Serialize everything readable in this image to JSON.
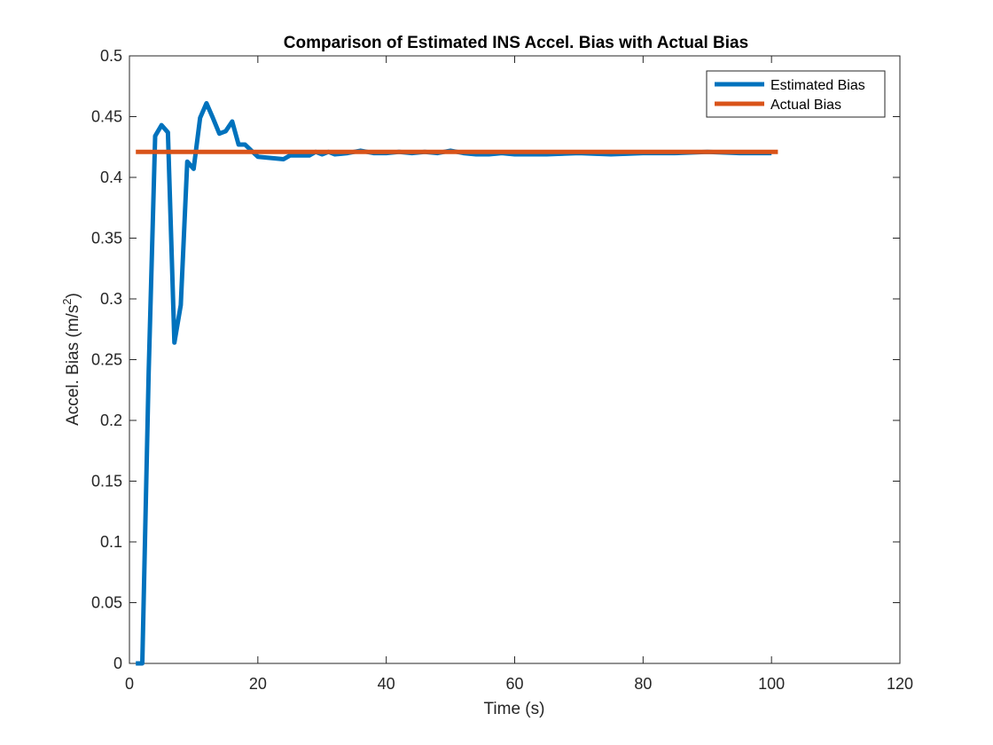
{
  "chart_data": {
    "type": "line",
    "title": "Comparison of Estimated INS Accel. Bias with Actual Bias",
    "xlabel": "Time (s)",
    "ylabel": "Accel. Bias (m/s",
    "ylabel_superscript": "2",
    "ylabel_suffix": ")",
    "xlim": [
      0,
      120
    ],
    "ylim": [
      0,
      0.5
    ],
    "xticks": [
      "0",
      "20",
      "40",
      "60",
      "80",
      "100",
      "120"
    ],
    "yticks": [
      "0",
      "0.05",
      "0.1",
      "0.15",
      "0.2",
      "0.25",
      "0.3",
      "0.35",
      "0.4",
      "0.45",
      "0.5"
    ],
    "grid": false,
    "legend_position": "top-right",
    "series": [
      {
        "name": "Estimated Bias",
        "color": "#0072BD",
        "x": [
          1,
          2,
          3,
          4,
          5,
          6,
          7,
          8,
          9,
          10,
          11,
          12,
          13,
          14,
          15,
          16,
          17,
          18,
          19,
          20,
          22,
          24,
          25,
          26,
          28,
          29,
          30,
          31,
          32,
          34,
          36,
          38,
          40,
          42,
          44,
          46,
          48,
          50,
          52,
          54,
          56,
          58,
          60,
          65,
          70,
          75,
          80,
          85,
          90,
          95,
          100
        ],
        "y": [
          0,
          0,
          0.24,
          0.434,
          0.443,
          0.437,
          0.264,
          0.295,
          0.413,
          0.407,
          0.449,
          0.461,
          0.449,
          0.436,
          0.438,
          0.446,
          0.427,
          0.427,
          0.422,
          0.417,
          0.416,
          0.415,
          0.418,
          0.418,
          0.418,
          0.421,
          0.419,
          0.421,
          0.419,
          0.42,
          0.422,
          0.42,
          0.42,
          0.421,
          0.42,
          0.421,
          0.42,
          0.422,
          0.42,
          0.419,
          0.419,
          0.42,
          0.419,
          0.419,
          0.42,
          0.419,
          0.42,
          0.42,
          0.421,
          0.42,
          0.42
        ]
      },
      {
        "name": "Actual Bias",
        "color": "#D95319",
        "x": [
          1,
          101
        ],
        "y": [
          0.421,
          0.421
        ]
      }
    ]
  }
}
